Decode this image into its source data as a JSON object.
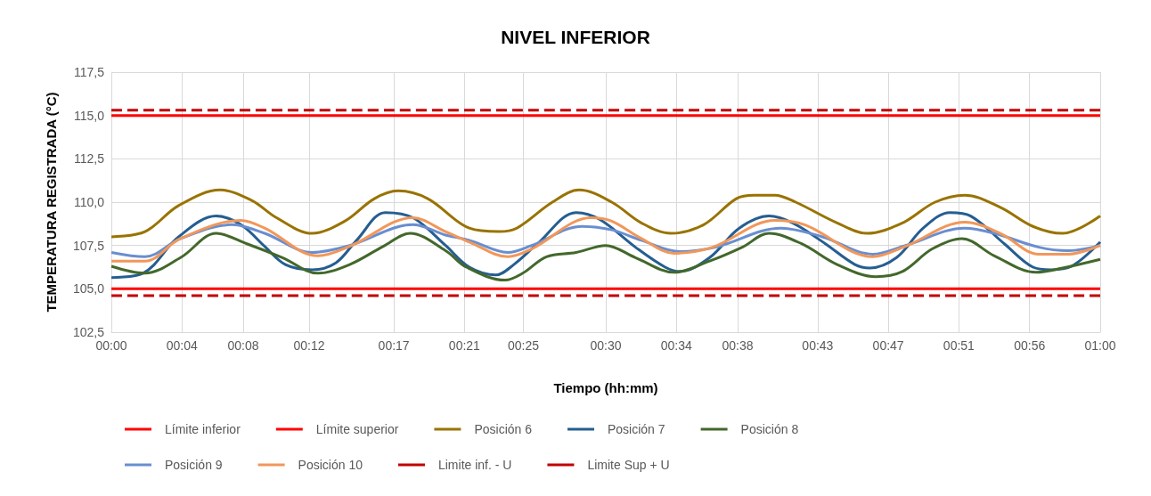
{
  "chart_data": {
    "type": "line",
    "title": "NIVEL INFERIOR",
    "xlabel": "Tiempo (hh:mm)",
    "ylabel": "TEMPERATURA REGISTRADA (°C)",
    "xlim": [
      0,
      1
    ],
    "xticks": [
      {
        "value": 0,
        "label": "00:00"
      },
      {
        "value": 0.0714,
        "label": "00:04"
      },
      {
        "value": 0.1333,
        "label": "00:08"
      },
      {
        "value": 0.2,
        "label": "00:12"
      },
      {
        "value": 0.2857,
        "label": "00:17"
      },
      {
        "value": 0.3571,
        "label": "00:21"
      },
      {
        "value": 0.4167,
        "label": "00:25"
      },
      {
        "value": 0.5,
        "label": "00:30"
      },
      {
        "value": 0.5714,
        "label": "00:34"
      },
      {
        "value": 0.6333,
        "label": "00:38"
      },
      {
        "value": 0.7143,
        "label": "00:43"
      },
      {
        "value": 0.7857,
        "label": "00:47"
      },
      {
        "value": 0.8571,
        "label": "00:51"
      },
      {
        "value": 0.9286,
        "label": "00:56"
      },
      {
        "value": 1,
        "label": "01:00"
      }
    ],
    "ylim": [
      102.5,
      117.5
    ],
    "yticks": [
      {
        "value": 102.5,
        "label": "102,5"
      },
      {
        "value": 105,
        "label": "105,0"
      },
      {
        "value": 107.5,
        "label": "107,5"
      },
      {
        "value": 110,
        "label": "110,0"
      },
      {
        "value": 112.5,
        "label": "112,5"
      },
      {
        "value": 115,
        "label": "115,0"
      },
      {
        "value": 117.5,
        "label": "117,5"
      }
    ],
    "grid": true,
    "legend": "bottom",
    "marker": "none",
    "line_style": "solid",
    "series": [
      {
        "name": "Límite inferior",
        "color": "#ff0000",
        "x": [
          0,
          1
        ],
        "values": [
          105,
          105
        ]
      },
      {
        "name": "Límite superior",
        "color": "#ff0000",
        "x": [
          0,
          1
        ],
        "values": [
          115,
          115
        ]
      },
      {
        "name": "Posición 6",
        "color": "#997300",
        "x": [
          0,
          0.034,
          0.068,
          0.11,
          0.142,
          0.167,
          0.203,
          0.236,
          0.266,
          0.29,
          0.32,
          0.362,
          0.392,
          0.41,
          0.446,
          0.473,
          0.506,
          0.536,
          0.566,
          0.599,
          0.632,
          0.65,
          0.671,
          0.692,
          0.734,
          0.764,
          0.8,
          0.833,
          0.863,
          0.899,
          0.932,
          0.962,
          1
        ],
        "values": [
          108.0,
          108.3,
          109.8,
          110.7,
          110.1,
          109.1,
          108.2,
          108.9,
          110.2,
          110.65,
          110.2,
          108.5,
          108.3,
          108.5,
          110.0,
          110.7,
          110.0,
          108.8,
          108.2,
          108.7,
          110.2,
          110.4,
          110.4,
          110.0,
          108.8,
          108.2,
          108.8,
          110.0,
          110.4,
          109.7,
          108.6,
          108.2,
          109.2
        ]
      },
      {
        "name": "Posición 7",
        "color": "#255e91",
        "x": [
          0,
          0.032,
          0.068,
          0.106,
          0.131,
          0.155,
          0.176,
          0.203,
          0.227,
          0.248,
          0.277,
          0.305,
          0.338,
          0.362,
          0.389,
          0.407,
          0.431,
          0.47,
          0.494,
          0.53,
          0.56,
          0.575,
          0.605,
          0.635,
          0.665,
          0.689,
          0.722,
          0.752,
          0.767,
          0.794,
          0.821,
          0.848,
          0.869,
          0.903,
          0.932,
          0.95,
          0.971,
          1
        ],
        "values": [
          105.65,
          105.9,
          108.0,
          109.2,
          108.7,
          107.45,
          106.4,
          106.1,
          106.5,
          107.8,
          109.4,
          109.1,
          107.5,
          106.25,
          105.8,
          106.4,
          107.6,
          109.4,
          109.0,
          107.4,
          106.25,
          106.0,
          106.8,
          108.5,
          109.2,
          108.8,
          107.6,
          106.4,
          106.2,
          106.8,
          108.5,
          109.4,
          109.2,
          107.6,
          106.25,
          106.1,
          106.3,
          107.7
        ]
      },
      {
        "name": "Posición 8",
        "color": "#43682b",
        "x": [
          0,
          0.034,
          0.07,
          0.106,
          0.137,
          0.173,
          0.209,
          0.241,
          0.275,
          0.302,
          0.338,
          0.359,
          0.398,
          0.416,
          0.44,
          0.47,
          0.5,
          0.53,
          0.569,
          0.605,
          0.638,
          0.665,
          0.698,
          0.734,
          0.773,
          0.8,
          0.83,
          0.86,
          0.893,
          0.935,
          0.962,
          1
        ],
        "values": [
          106.3,
          105.9,
          106.8,
          108.2,
          107.6,
          106.8,
          105.9,
          106.4,
          107.45,
          108.2,
          107.2,
          106.25,
          105.5,
          105.9,
          106.85,
          107.1,
          107.5,
          106.8,
          105.95,
          106.6,
          107.4,
          108.2,
          107.6,
          106.4,
          105.7,
          106.0,
          107.3,
          107.9,
          106.9,
          105.95,
          106.2,
          106.7
        ]
      },
      {
        "name": "Posición 9",
        "color": "#698ed0",
        "x": [
          0,
          0.034,
          0.07,
          0.122,
          0.155,
          0.203,
          0.241,
          0.305,
          0.338,
          0.362,
          0.401,
          0.425,
          0.476,
          0.506,
          0.536,
          0.575,
          0.611,
          0.677,
          0.719,
          0.77,
          0.803,
          0.863,
          0.893,
          0.938,
          0.968,
          1
        ],
        "values": [
          107.1,
          106.85,
          107.9,
          108.7,
          108.2,
          107.1,
          107.5,
          108.7,
          108.1,
          107.8,
          107.1,
          107.5,
          108.6,
          108.4,
          107.8,
          107.15,
          107.4,
          108.5,
          108.0,
          107.0,
          107.5,
          108.5,
          108.2,
          107.4,
          107.2,
          107.5
        ]
      },
      {
        "name": "Posición 10",
        "color": "#f1975a",
        "x": [
          0,
          0.034,
          0.07,
          0.131,
          0.155,
          0.209,
          0.241,
          0.305,
          0.338,
          0.362,
          0.401,
          0.425,
          0.485,
          0.506,
          0.536,
          0.569,
          0.608,
          0.671,
          0.701,
          0.77,
          0.803,
          0.863,
          0.899,
          0.938,
          0.968,
          1
        ],
        "values": [
          106.6,
          106.6,
          107.9,
          108.95,
          108.5,
          106.9,
          107.45,
          109.1,
          108.3,
          107.7,
          106.85,
          107.3,
          109.1,
          108.9,
          107.9,
          107.05,
          107.4,
          108.95,
          108.7,
          106.85,
          107.45,
          108.85,
          108.2,
          107.0,
          107.0,
          107.5
        ]
      },
      {
        "name": "Limite inf. - U",
        "color": "#c00000",
        "line_style": "dashed",
        "x": [
          0,
          1
        ],
        "values": [
          104.6,
          104.6
        ]
      },
      {
        "name": "Limite Sup + U",
        "color": "#c00000",
        "line_style": "dashed",
        "x": [
          0,
          1
        ],
        "values": [
          115.3,
          115.3
        ]
      }
    ]
  }
}
